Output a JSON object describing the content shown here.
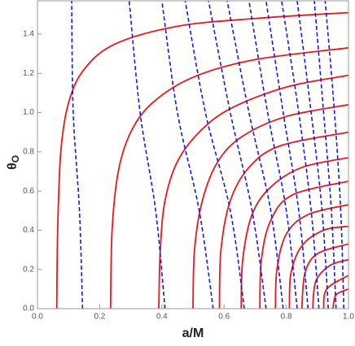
{
  "chart_data": {
    "type": "line",
    "xlabel": "a/M",
    "ylabel": "θ",
    "ylabel_sub": "O",
    "xlim": [
      0,
      1
    ],
    "ylim": [
      0,
      1.57
    ],
    "xticks": [
      {
        "value": 0,
        "label": "0.0"
      },
      0.2,
      0.4,
      0.6,
      0.8,
      {
        "value": 1,
        "label": "1.0"
      }
    ],
    "yticks": [
      {
        "value": 0,
        "label": "0.0"
      },
      0.2,
      0.4,
      0.6,
      0.8,
      {
        "value": 1,
        "label": "1.0"
      },
      1.2,
      1.4
    ],
    "series": [
      {
        "color": "#e8191e",
        "dashed": false,
        "x": [
          0.062,
          0.065,
          0.075,
          0.1,
          0.15,
          0.25,
          0.45,
          0.7,
          1.0
        ],
        "values": [
          0,
          0.4,
          0.8,
          1.05,
          1.22,
          1.35,
          1.44,
          1.48,
          1.51
        ]
      },
      {
        "color": "#e8191e",
        "dashed": false,
        "x": [
          0.235,
          0.24,
          0.26,
          0.3,
          0.37,
          0.5,
          0.7,
          1.0
        ],
        "values": [
          0,
          0.4,
          0.7,
          0.9,
          1.05,
          1.18,
          1.27,
          1.33
        ]
      },
      {
        "color": "#e8191e",
        "dashed": false,
        "x": [
          0.39,
          0.395,
          0.41,
          0.45,
          0.52,
          0.62,
          0.8,
          1.0
        ],
        "values": [
          0,
          0.3,
          0.55,
          0.75,
          0.9,
          1.02,
          1.13,
          1.19
        ]
      },
      {
        "color": "#e8191e",
        "dashed": false,
        "x": [
          0.5,
          0.505,
          0.53,
          0.58,
          0.66,
          0.8,
          1.0
        ],
        "values": [
          0,
          0.3,
          0.55,
          0.75,
          0.88,
          0.98,
          1.04
        ]
      },
      {
        "color": "#e8191e",
        "dashed": false,
        "x": [
          0.585,
          0.59,
          0.62,
          0.68,
          0.78,
          1.0
        ],
        "values": [
          0,
          0.3,
          0.55,
          0.72,
          0.83,
          0.9
        ]
      },
      {
        "color": "#e8191e",
        "dashed": false,
        "x": [
          0.655,
          0.66,
          0.69,
          0.75,
          0.85,
          1.0
        ],
        "values": [
          0,
          0.25,
          0.48,
          0.62,
          0.72,
          0.77
        ]
      },
      {
        "color": "#e8191e",
        "dashed": false,
        "x": [
          0.715,
          0.72,
          0.75,
          0.82,
          1.0
        ],
        "values": [
          0,
          0.25,
          0.45,
          0.58,
          0.65
        ]
      },
      {
        "color": "#e8191e",
        "dashed": false,
        "x": [
          0.765,
          0.77,
          0.8,
          0.87,
          1.0
        ],
        "values": [
          0,
          0.2,
          0.38,
          0.48,
          0.53
        ]
      },
      {
        "color": "#e8191e",
        "dashed": false,
        "x": [
          0.81,
          0.815,
          0.85,
          0.92,
          1.0
        ],
        "values": [
          0,
          0.18,
          0.32,
          0.4,
          0.42
        ]
      },
      {
        "color": "#e8191e",
        "dashed": false,
        "x": [
          0.85,
          0.86,
          0.9,
          1.0
        ],
        "values": [
          0,
          0.18,
          0.28,
          0.33
        ]
      },
      {
        "color": "#e8191e",
        "dashed": false,
        "x": [
          0.885,
          0.895,
          0.94,
          1.0
        ],
        "values": [
          0,
          0.14,
          0.22,
          0.25
        ]
      },
      {
        "color": "#e8191e",
        "dashed": false,
        "x": [
          0.92,
          0.93,
          1.0
        ],
        "values": [
          0,
          0.1,
          0.17
        ]
      },
      {
        "color": "#e8191e",
        "dashed": false,
        "x": [
          0.95,
          0.96,
          1.0
        ],
        "values": [
          0,
          0.07,
          0.1
        ]
      },
      {
        "color": "#1a1adc",
        "dashed": true,
        "x": [
          0.145,
          0.135,
          0.115,
          0.11
        ],
        "values": [
          0,
          0.5,
          1.0,
          1.57
        ]
      },
      {
        "color": "#1a1adc",
        "dashed": true,
        "x": [
          0.41,
          0.38,
          0.33,
          0.295
        ],
        "values": [
          0,
          0.5,
          1.0,
          1.57
        ]
      },
      {
        "color": "#1a1adc",
        "dashed": true,
        "x": [
          0.565,
          0.52,
          0.45,
          0.4
        ],
        "values": [
          0,
          0.5,
          1.0,
          1.57
        ]
      },
      {
        "color": "#1a1adc",
        "dashed": true,
        "x": [
          0.665,
          0.62,
          0.54,
          0.475
        ],
        "values": [
          0,
          0.5,
          1.0,
          1.57
        ]
      },
      {
        "color": "#1a1adc",
        "dashed": true,
        "x": [
          0.735,
          0.69,
          0.62,
          0.55
        ],
        "values": [
          0,
          0.5,
          1.0,
          1.57
        ]
      },
      {
        "color": "#1a1adc",
        "dashed": true,
        "x": [
          0.79,
          0.75,
          0.68,
          0.61
        ],
        "values": [
          0,
          0.5,
          1.0,
          1.57
        ]
      },
      {
        "color": "#1a1adc",
        "dashed": true,
        "x": [
          0.835,
          0.8,
          0.74,
          0.68
        ],
        "values": [
          0,
          0.5,
          1.0,
          1.57
        ]
      },
      {
        "color": "#1a1adc",
        "dashed": true,
        "x": [
          0.87,
          0.84,
          0.79,
          0.735
        ],
        "values": [
          0,
          0.5,
          1.0,
          1.57
        ]
      },
      {
        "color": "#1a1adc",
        "dashed": true,
        "x": [
          0.905,
          0.88,
          0.84,
          0.785
        ],
        "values": [
          0,
          0.5,
          1.0,
          1.57
        ]
      },
      {
        "color": "#1a1adc",
        "dashed": true,
        "x": [
          0.935,
          0.915,
          0.88,
          0.835
        ],
        "values": [
          0,
          0.5,
          1.0,
          1.57
        ]
      },
      {
        "color": "#1a1adc",
        "dashed": true,
        "x": [
          0.96,
          0.945,
          0.92,
          0.89
        ],
        "values": [
          0,
          0.5,
          1.0,
          1.57
        ]
      },
      {
        "color": "#1a1adc",
        "dashed": true,
        "x": [
          0.985,
          0.975,
          0.955,
          0.925
        ],
        "values": [
          0,
          0.5,
          1.0,
          1.57
        ]
      }
    ]
  }
}
